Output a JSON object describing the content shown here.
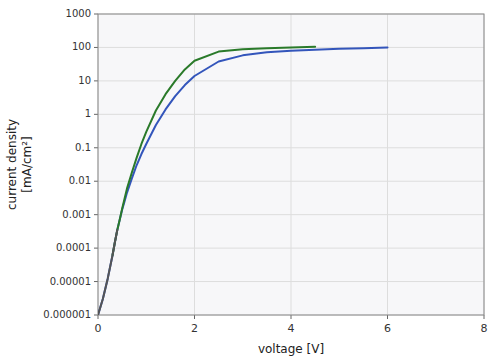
{
  "chart_data": {
    "type": "line",
    "title": "",
    "xlabel": "voltage [V]",
    "ylabel": "current density\n[mA/cm²]",
    "log": "y",
    "grid": true,
    "xlim": [
      0,
      8
    ],
    "xticks": [
      0,
      2,
      4,
      6,
      8
    ],
    "ylim": [
      1e-06,
      1000
    ],
    "yticks": [
      1e-06,
      1e-05,
      0.0001,
      0.001,
      0.01,
      0.1,
      1,
      10,
      100,
      1000
    ],
    "series": [
      {
        "color": "#3355bb",
        "x": [
          0.0,
          0.1,
          0.2,
          0.3,
          0.35,
          0.4,
          0.45,
          0.5,
          0.55,
          0.6,
          0.7,
          0.8,
          0.9,
          1.0,
          1.2,
          1.4,
          1.6,
          1.8,
          2.0,
          2.5,
          3.0,
          3.5,
          4.0,
          4.5,
          5.0,
          5.5,
          6.0
        ],
        "values": [
          1e-06,
          3e-06,
          1.2e-05,
          6e-05,
          0.00015,
          0.00035,
          0.0007,
          0.0014,
          0.0025,
          0.0045,
          0.012,
          0.03,
          0.065,
          0.13,
          0.48,
          1.4,
          3.5,
          7.5,
          14,
          38,
          58,
          72,
          80,
          86,
          91,
          95,
          100
        ]
      },
      {
        "color": "#2a7a2a",
        "x": [
          0.3,
          0.35,
          0.4,
          0.45,
          0.5,
          0.55,
          0.6,
          0.7,
          0.8,
          0.9,
          1.0,
          1.2,
          1.4,
          1.6,
          1.8,
          2.0,
          2.5,
          3.0,
          3.5,
          4.0,
          4.5
        ],
        "values": [
          6e-05,
          0.00015,
          0.00035,
          0.0007,
          0.0015,
          0.003,
          0.006,
          0.018,
          0.05,
          0.13,
          0.3,
          1.3,
          4.0,
          10,
          22,
          40,
          75,
          88,
          95,
          100,
          105
        ]
      },
      {
        "color": "#555555",
        "x": [
          0.0,
          0.1,
          0.2,
          0.3,
          0.35,
          0.4
        ],
        "values": [
          1e-06,
          3e-06,
          1.2e-05,
          6e-05,
          0.00015,
          0.00035
        ]
      }
    ]
  }
}
